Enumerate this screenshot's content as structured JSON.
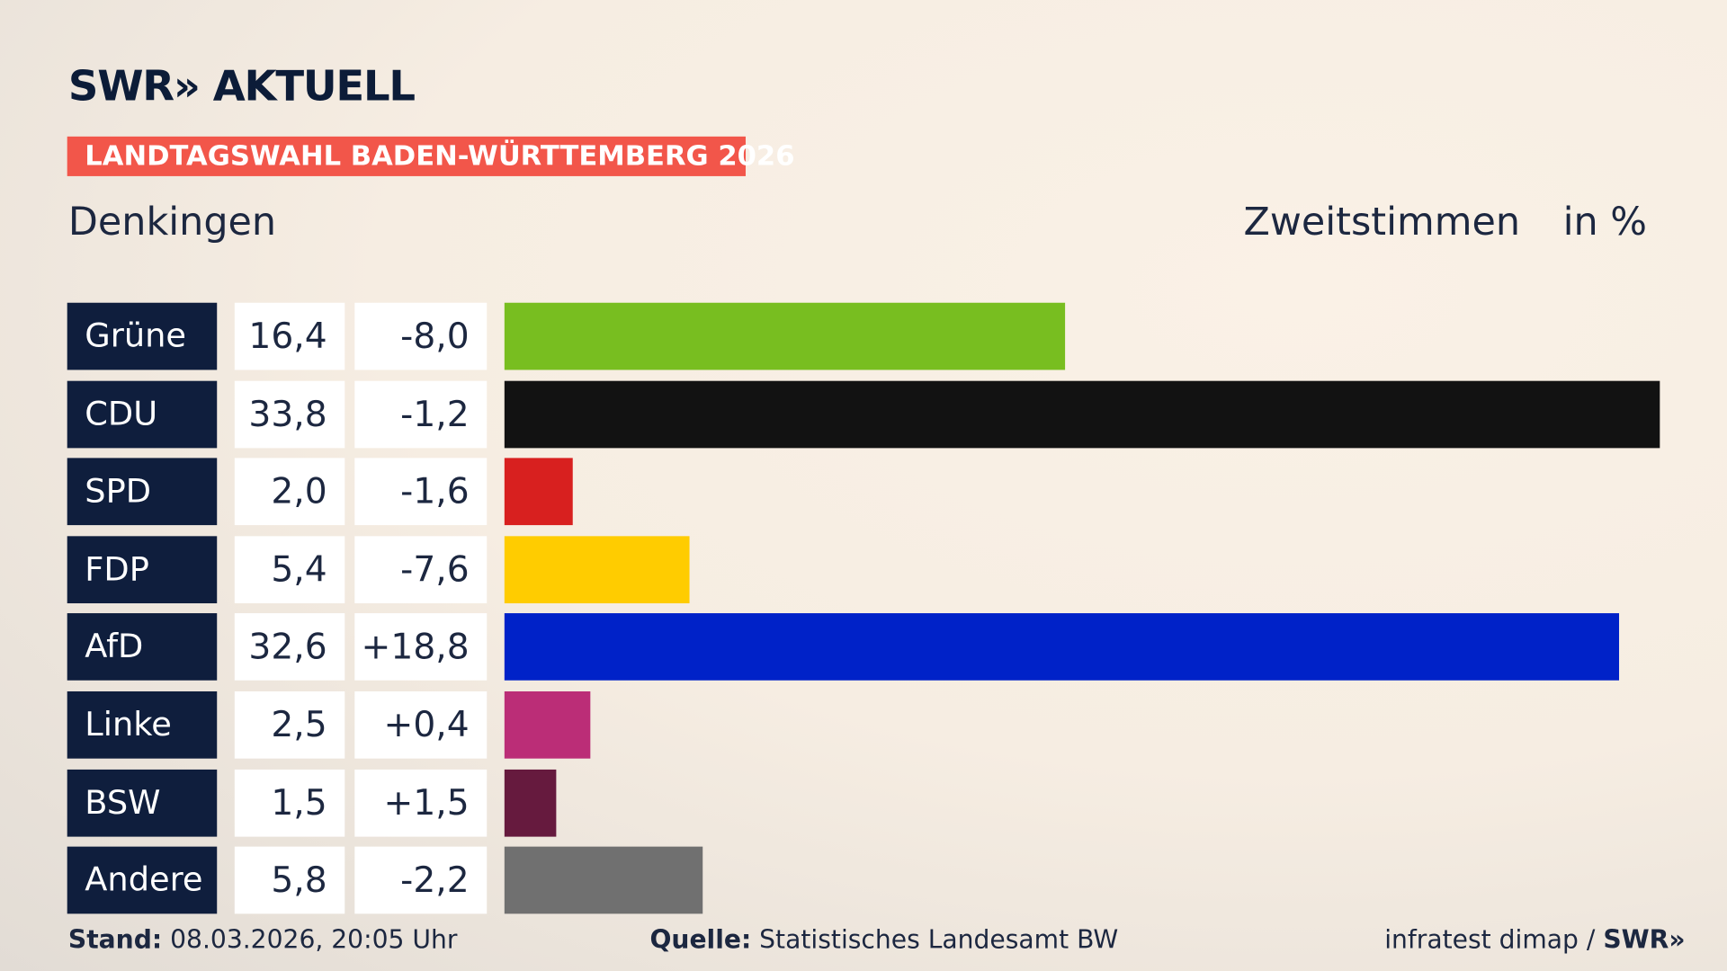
{
  "header": {
    "logo": "SWR» AKTUELL",
    "banner": "LANDTAGSWAHL BADEN-WÜRTTEMBERG 2026",
    "place": "Denkingen",
    "vote_type": "Zweitstimmen",
    "unit": "in %"
  },
  "chart_data": {
    "type": "bar",
    "orientation": "horizontal",
    "categories": [
      "Grüne",
      "CDU",
      "SPD",
      "FDP",
      "AfD",
      "Linke",
      "BSW",
      "Andere"
    ],
    "values": [
      16.4,
      33.8,
      2.0,
      5.4,
      32.6,
      2.5,
      1.5,
      5.8
    ],
    "value_labels": [
      "16,4",
      "33,8",
      "2,0",
      "5,4",
      "32,6",
      "2,5",
      "1,5",
      "5,8"
    ],
    "diff_labels": [
      "-8,0",
      "-1,2",
      "-1,6",
      "-7,6",
      "+18,8",
      "+0,4",
      "+1,5",
      "-2,2"
    ],
    "colors": [
      "#78be20",
      "#121212",
      "#d8201f",
      "#ffcc00",
      "#0022c8",
      "#bb2d77",
      "#661a3e",
      "#707070"
    ],
    "xlim": [
      0,
      33.8
    ]
  },
  "footer": {
    "stand_label": "Stand:",
    "stand": "08.03.2026, 20:05 Uhr",
    "source_label": "Quelle:",
    "source": "Statistisches Landesamt BW",
    "credit": "infratest dimap /",
    "credit_logo": "SWR»"
  }
}
